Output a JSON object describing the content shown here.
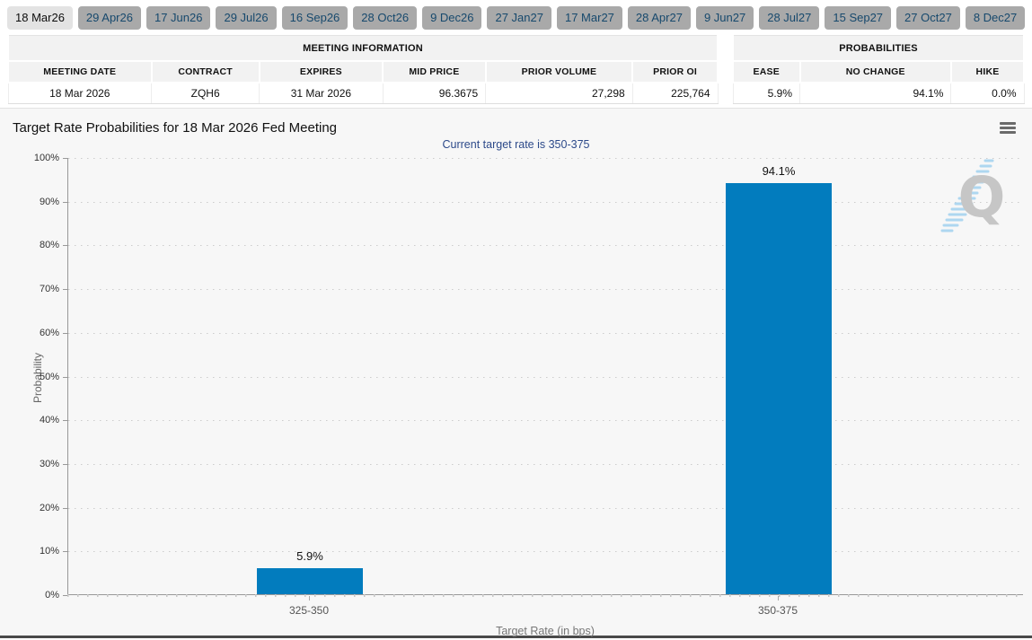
{
  "tab_bar": {
    "tabs": [
      {
        "label": "18 Mar26",
        "active": true
      },
      {
        "label": "29 Apr26",
        "active": false
      },
      {
        "label": "17 Jun26",
        "active": false
      },
      {
        "label": "29 Jul26",
        "active": false
      },
      {
        "label": "16 Sep26",
        "active": false
      },
      {
        "label": "28 Oct26",
        "active": false
      },
      {
        "label": "9 Dec26",
        "active": false
      },
      {
        "label": "27 Jan27",
        "active": false
      },
      {
        "label": "17 Mar27",
        "active": false
      },
      {
        "label": "28 Apr27",
        "active": false
      },
      {
        "label": "9 Jun27",
        "active": false
      },
      {
        "label": "28 Jul27",
        "active": false
      },
      {
        "label": "15 Sep27",
        "active": false
      },
      {
        "label": "27 Oct27",
        "active": false
      },
      {
        "label": "8 Dec27",
        "active": false
      }
    ]
  },
  "meeting_information_table": {
    "title": "MEETING INFORMATION",
    "columns": [
      "MEETING DATE",
      "CONTRACT",
      "EXPIRES",
      "MID PRICE",
      "PRIOR VOLUME",
      "PRIOR OI"
    ],
    "row": [
      "18 Mar 2026",
      "ZQH6",
      "31 Mar 2026",
      "96.3675",
      "27,298",
      "225,764"
    ]
  },
  "probabilities_table": {
    "title": "PROBABILITIES",
    "columns": [
      "EASE",
      "NO CHANGE",
      "HIKE"
    ],
    "row": [
      "5.9%",
      "94.1%",
      "0.0%"
    ]
  },
  "chart": {
    "title": "Target Rate Probabilities for 18 Mar 2026 Fed Meeting",
    "subtitle": "Current target rate is 350-375",
    "menu_icon": "hamburger-icon",
    "watermark_letter": "Q"
  },
  "chart_data": {
    "type": "bar",
    "title": "Target Rate Probabilities for 18 Mar 2026 Fed Meeting",
    "subtitle": "Current target rate is 350-375",
    "categories": [
      "325-350",
      "350-375"
    ],
    "values": [
      5.9,
      94.1
    ],
    "value_labels": [
      "5.9%",
      "94.1%"
    ],
    "xlabel": "Target Rate (in bps)",
    "ylabel": "Probability",
    "ylim": [
      0,
      100
    ],
    "ytick_step": 10,
    "ytick_labels": [
      "0%",
      "10%",
      "20%",
      "30%",
      "40%",
      "50%",
      "60%",
      "70%",
      "80%",
      "90%",
      "100%"
    ],
    "grid": "horizontal-dotted",
    "legend": "none",
    "bar_color": "#027cbe"
  },
  "colors": {
    "bar_blue": "#027cbe",
    "tab_active_bg": "#e3e3e3",
    "tab_inactive_bg": "#a9a9a9",
    "tab_text": "#17496d",
    "subtitle_navy": "#2d4a8a",
    "table_header_bg": "#f2f2f2",
    "chart_bg": "#f7f7f7",
    "axis_gray": "#999999",
    "watermark_gray": "#c6c6c6",
    "watermark_blue": "#aed7f0"
  }
}
